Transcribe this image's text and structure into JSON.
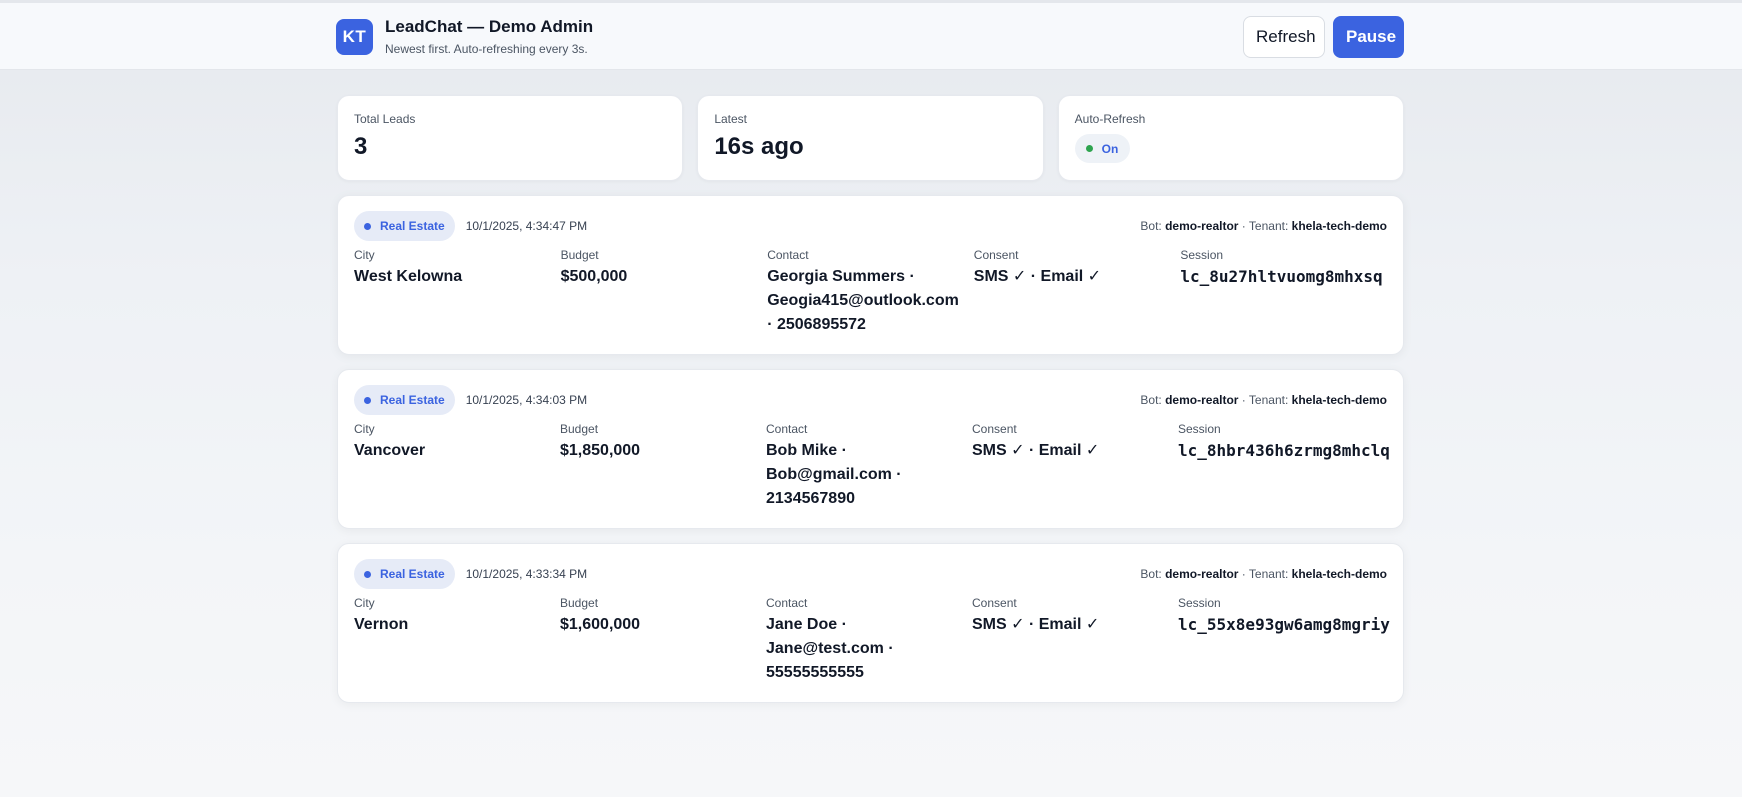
{
  "header": {
    "logo_initials": "KT",
    "title": "LeadChat — Demo Admin",
    "subtitle": "Newest first. Auto-refreshing every 3s.",
    "refresh_label": "Refresh",
    "pause_label": "Pause"
  },
  "stats": {
    "total_label": "Total Leads",
    "total_value": "3",
    "latest_label": "Latest",
    "latest_value": "16s ago",
    "auto_label": "Auto-Refresh",
    "auto_value": "On"
  },
  "labels": {
    "bot": "Bot:",
    "tenant": "Tenant:",
    "sep": "·",
    "city": "City",
    "budget": "Budget",
    "contact": "Contact",
    "consent": "Consent",
    "session": "Session"
  },
  "leads": [
    {
      "tag": "Real Estate",
      "time": "10/1/2025, 4:34:47 PM",
      "bot": "demo-realtor",
      "tenant": "khela-tech-demo",
      "city": "West Kelowna",
      "budget": "$500,000",
      "contact": "Georgia Summers · Geogia415@outlook.com · 2506895572",
      "consent": "SMS ✓ · Email ✓",
      "session": "lc_8u27hltvuomg8mhxsq"
    },
    {
      "tag": "Real Estate",
      "time": "10/1/2025, 4:34:03 PM",
      "bot": "demo-realtor",
      "tenant": "khela-tech-demo",
      "city": "Vancover",
      "budget": "$1,850,000",
      "contact": "Bob Mike · Bob@gmail.com · 2134567890",
      "consent": "SMS ✓ · Email ✓",
      "session": "lc_8hbr436h6zrmg8mhclq"
    },
    {
      "tag": "Real Estate",
      "time": "10/1/2025, 4:33:34 PM",
      "bot": "demo-realtor",
      "tenant": "khela-tech-demo",
      "city": "Vernon",
      "budget": "$1,600,000",
      "contact": "Jane Doe · Jane@test.com · 55555555555",
      "consent": "SMS ✓ · Email ✓",
      "session": "lc_55x8e93gw6amg8mgriy"
    }
  ],
  "colors": {
    "accent": "#3b63e0",
    "status_green": "#2ea44f"
  }
}
